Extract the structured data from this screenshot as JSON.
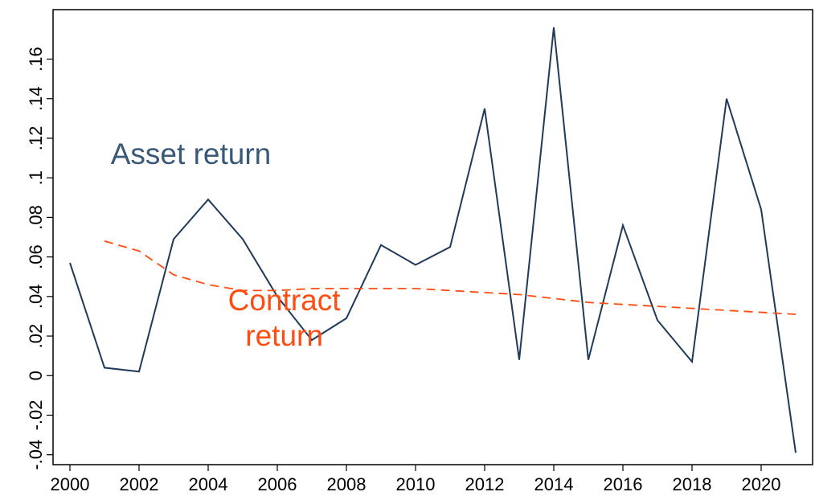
{
  "chart_data": {
    "type": "line",
    "title": "",
    "xlabel": "",
    "ylabel": "",
    "xlim": [
      2000,
      2021
    ],
    "ylim": [
      -0.045,
      0.185
    ],
    "grid": false,
    "legend": "none",
    "x_ticks": [
      {
        "value": 2000,
        "label": "2000"
      },
      {
        "value": 2002,
        "label": "2002"
      },
      {
        "value": 2004,
        "label": "2004"
      },
      {
        "value": 2006,
        "label": "2006"
      },
      {
        "value": 2008,
        "label": "2008"
      },
      {
        "value": 2010,
        "label": "2010"
      },
      {
        "value": 2012,
        "label": "2012"
      },
      {
        "value": 2014,
        "label": "2014"
      },
      {
        "value": 2016,
        "label": "2016"
      },
      {
        "value": 2018,
        "label": "2018"
      },
      {
        "value": 2020,
        "label": "2020"
      }
    ],
    "y_ticks": [
      {
        "value": -0.04,
        "label": "-.04"
      },
      {
        "value": -0.02,
        "label": "-.02"
      },
      {
        "value": 0,
        "label": "0"
      },
      {
        "value": 0.02,
        "label": ".02"
      },
      {
        "value": 0.04,
        "label": ".04"
      },
      {
        "value": 0.06,
        "label": ".06"
      },
      {
        "value": 0.08,
        "label": ".08"
      },
      {
        "value": 0.1,
        "label": ".1"
      },
      {
        "value": 0.12,
        "label": ".12"
      },
      {
        "value": 0.14,
        "label": ".14"
      },
      {
        "value": 0.16,
        "label": ".16"
      }
    ],
    "series": [
      {
        "name": "Asset return",
        "color": "#1f3a5a",
        "style": "solid",
        "points": [
          {
            "x": 2000,
            "y": 0.057
          },
          {
            "x": 2001,
            "y": 0.004
          },
          {
            "x": 2002,
            "y": 0.002
          },
          {
            "x": 2003,
            "y": 0.069
          },
          {
            "x": 2004,
            "y": 0.089
          },
          {
            "x": 2005,
            "y": 0.069
          },
          {
            "x": 2006,
            "y": 0.04
          },
          {
            "x": 2007,
            "y": 0.018
          },
          {
            "x": 2008,
            "y": 0.029
          },
          {
            "x": 2009,
            "y": 0.066
          },
          {
            "x": 2010,
            "y": 0.056
          },
          {
            "x": 2011,
            "y": 0.065
          },
          {
            "x": 2012,
            "y": 0.135
          },
          {
            "x": 2013,
            "y": 0.008
          },
          {
            "x": 2014,
            "y": 0.176
          },
          {
            "x": 2015,
            "y": 0.008
          },
          {
            "x": 2016,
            "y": 0.076
          },
          {
            "x": 2017,
            "y": 0.028
          },
          {
            "x": 2018,
            "y": 0.007
          },
          {
            "x": 2019,
            "y": 0.14
          },
          {
            "x": 2020,
            "y": 0.084
          },
          {
            "x": 2021,
            "y": -0.039
          }
        ]
      },
      {
        "name": "Contract return",
        "color": "#ff4d12",
        "style": "dashed",
        "points": [
          {
            "x": 2001,
            "y": 0.068
          },
          {
            "x": 2002,
            "y": 0.063
          },
          {
            "x": 2003,
            "y": 0.051
          },
          {
            "x": 2004,
            "y": 0.046
          },
          {
            "x": 2005,
            "y": 0.043
          },
          {
            "x": 2006,
            "y": 0.043
          },
          {
            "x": 2007,
            "y": 0.044
          },
          {
            "x": 2008,
            "y": 0.044
          },
          {
            "x": 2009,
            "y": 0.044
          },
          {
            "x": 2010,
            "y": 0.044
          },
          {
            "x": 2011,
            "y": 0.043
          },
          {
            "x": 2012,
            "y": 0.042
          },
          {
            "x": 2013,
            "y": 0.041
          },
          {
            "x": 2014,
            "y": 0.039
          },
          {
            "x": 2015,
            "y": 0.037
          },
          {
            "x": 2016,
            "y": 0.036
          },
          {
            "x": 2017,
            "y": 0.035
          },
          {
            "x": 2018,
            "y": 0.034
          },
          {
            "x": 2019,
            "y": 0.033
          },
          {
            "x": 2020,
            "y": 0.032
          },
          {
            "x": 2021,
            "y": 0.031
          }
        ]
      }
    ],
    "annotations": [
      {
        "lines": [
          "Asset return"
        ],
        "color": "#3a5878",
        "x": 2003.5,
        "y": 0.107
      },
      {
        "lines": [
          "Contract",
          "return"
        ],
        "color": "#ff4d12",
        "x": 2006.2,
        "y": 0.033
      }
    ]
  }
}
